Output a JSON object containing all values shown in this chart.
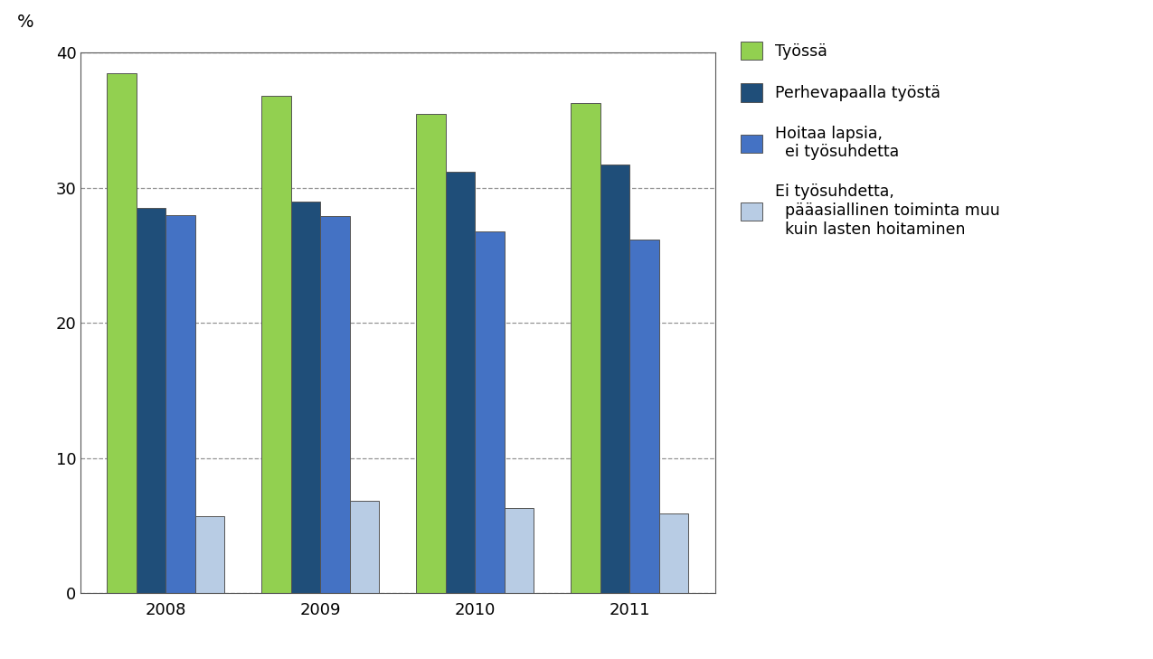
{
  "years": [
    "2008",
    "2009",
    "2010",
    "2011"
  ],
  "series": {
    "Työssä": [
      38.5,
      36.8,
      35.5,
      36.3
    ],
    "Perhevapaalla työstä": [
      28.5,
      29.0,
      31.2,
      31.7
    ],
    "Hoitaa lapsia,\nei työsuhdetta": [
      28.0,
      27.9,
      26.8,
      26.2
    ],
    "Ei työsuhdetta,\npääasiallinen toiminta muu\nkuin lasten hoitaminen": [
      5.7,
      6.8,
      6.3,
      5.9
    ]
  },
  "colors": [
    "#92d050",
    "#1f4e79",
    "#4472c4",
    "#b8cce4"
  ],
  "ylabel": "%",
  "ylim": [
    0,
    40
  ],
  "yticks": [
    0,
    10,
    20,
    30,
    40
  ],
  "grid_color": "#888888",
  "background_color": "#ffffff",
  "plot_area_color": "#ffffff",
  "bar_width": 0.19,
  "legend_labels": [
    "Työssä",
    "Perhevapaalla työstä",
    "Hoitaa lapsia,\n  ei työsuhdetta",
    "Ei työsuhdetta,\n  pääasiallinen toiminta muu\n  kuin lasten hoitaminen"
  ]
}
